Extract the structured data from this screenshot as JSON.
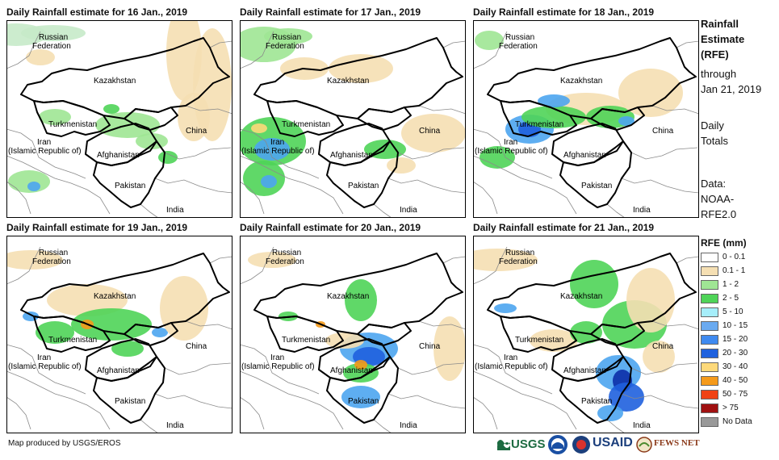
{
  "panels": [
    {
      "title": "Daily Rainfall estimate for 16 Jan., 2019",
      "palette": [
        "#c7eac9",
        "#f5dfb3",
        "#9fe594",
        "#4fd458",
        "#4da5ef"
      ]
    },
    {
      "title": "Daily Rainfall estimate for 17 Jan., 2019",
      "palette": [
        "#9fe594",
        "#f5dfb3",
        "#4fd458",
        "#4da5ef",
        "#1f61de",
        "#fdd97a"
      ]
    },
    {
      "title": "Daily Rainfall estimate for 18 Jan., 2019",
      "palette": [
        "#9fe594",
        "#f5dfb3",
        "#4fd458",
        "#4da5ef",
        "#1f61de"
      ]
    },
    {
      "title": "Daily Rainfall estimate for 19 Jan., 2019",
      "palette": [
        "#9fe594",
        "#f5dfb3",
        "#4fd458",
        "#4da5ef",
        "#f59a1a"
      ]
    },
    {
      "title": "Daily Rainfall estimate for 20 Jan., 2019",
      "palette": [
        "#9fe594",
        "#f5dfb3",
        "#4fd458",
        "#4da5ef",
        "#1f61de",
        "#f59a1a"
      ]
    },
    {
      "title": "Daily Rainfall estimate for 21 Jan., 2019",
      "palette": [
        "#9fe594",
        "#f5dfb3",
        "#4fd458",
        "#4da5ef",
        "#1f61de",
        "#0c2fa8"
      ]
    }
  ],
  "map_labels": {
    "russia_1": "Russian",
    "russia_2": "Federation",
    "kazakhstan": "Kazakhstan",
    "turkmenistan": "Turkmenistan",
    "china": "China",
    "iran_1": "Iran",
    "iran_2": "(Islamic Republic of)",
    "afghanistan": "Afghanistan",
    "pakistan": "Pakistan",
    "india": "India"
  },
  "side_text": {
    "line1": "Rainfall",
    "line2": "Estimate",
    "line3": "(RFE)",
    "line4": "through",
    "line5": "Jan 21, 2019",
    "line6": "Daily",
    "line7": "Totals",
    "line8": "Data:",
    "line9": "NOAA-",
    "line10": "RFE2.0"
  },
  "legend": {
    "title": "RFE (mm)",
    "items": [
      {
        "label": "0 - 0.1",
        "color": "#ffffff"
      },
      {
        "label": "0.1 - 1",
        "color": "#f5dfb3"
      },
      {
        "label": "1 - 2",
        "color": "#9fe594"
      },
      {
        "label": "2 - 5",
        "color": "#4fd458"
      },
      {
        "label": "5 - 10",
        "color": "#a6eefa"
      },
      {
        "label": "10 - 15",
        "color": "#6aaaf0"
      },
      {
        "label": "15 - 20",
        "color": "#3f8af0"
      },
      {
        "label": "20 - 30",
        "color": "#1f61de"
      },
      {
        "label": "30 - 40",
        "color": "#fdd97a"
      },
      {
        "label": "40 - 50",
        "color": "#f59a1a"
      },
      {
        "label": "50 - 75",
        "color": "#f04214"
      },
      {
        "label": "> 75",
        "color": "#a01010"
      },
      {
        "label": "No Data",
        "color": "#999999"
      }
    ]
  },
  "credit": "Map produced by USGS/EROS",
  "logos": {
    "usgs": "USGS",
    "usaid": "USAID",
    "fewsnet": "FEWS NET"
  }
}
